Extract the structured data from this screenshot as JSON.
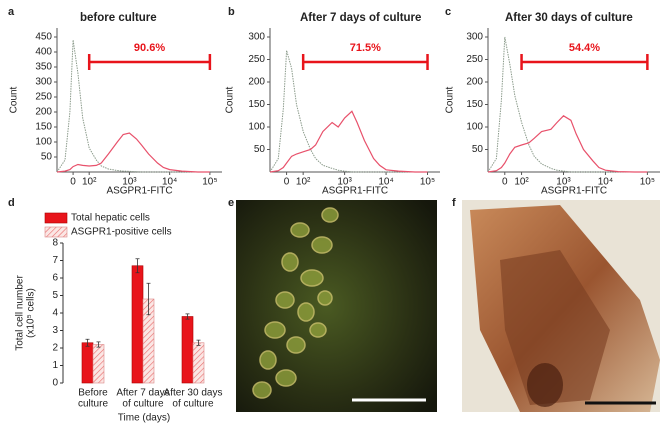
{
  "chart_data": [
    {
      "type": "line",
      "panel": "a",
      "title": "before culture",
      "xlabel": "ASGPR1-FITC",
      "ylabel": "Count",
      "xscale": "biexponential",
      "x": [
        -100,
        -50,
        -20,
        0,
        30,
        60,
        100,
        150,
        200,
        300,
        500,
        700,
        1000,
        1500,
        2000,
        3000,
        5000,
        7000,
        10000,
        20000,
        50000,
        100000
      ],
      "series": [
        {
          "color": "#8a9a8a",
          "style": "dotted",
          "values": [
            0,
            40,
            200,
            440,
            330,
            180,
            80,
            40,
            20,
            10,
            5,
            3,
            2,
            1,
            0,
            0,
            0,
            0,
            0,
            0,
            0,
            0
          ]
        },
        {
          "color": "#e8516b",
          "style": "solid",
          "values": [
            0,
            3,
            8,
            18,
            25,
            22,
            20,
            22,
            30,
            60,
            100,
            125,
            130,
            110,
            90,
            60,
            30,
            15,
            8,
            3,
            0,
            0
          ]
        }
      ],
      "xlim": [
        -100,
        200000
      ],
      "xticks": [
        0,
        {
          "value": 100,
          "label": "10²"
        },
        {
          "value": 1000,
          "label": "10³"
        },
        {
          "value": 10000,
          "label": "10⁴"
        },
        {
          "value": 100000,
          "label": "10⁵"
        }
      ],
      "ylim": [
        0,
        480
      ],
      "yticks": [
        50,
        100,
        150,
        200,
        250,
        300,
        350,
        400,
        450
      ],
      "gate": {
        "label": "90.6%",
        "range": [
          100,
          100000
        ]
      }
    },
    {
      "type": "line",
      "panel": "b",
      "title": "After 7 days of culture",
      "xlabel": "ASGPR1-FITC",
      "ylabel": "Count",
      "xscale": "biexponential",
      "x": [
        -100,
        -50,
        -20,
        0,
        30,
        60,
        100,
        150,
        200,
        300,
        500,
        700,
        1000,
        1500,
        2000,
        3000,
        5000,
        7000,
        10000,
        20000,
        50000,
        100000
      ],
      "series": [
        {
          "color": "#8a9a8a",
          "style": "dotted",
          "values": [
            0,
            30,
            140,
            270,
            230,
            150,
            90,
            50,
            30,
            15,
            8,
            4,
            2,
            0,
            0,
            0,
            0,
            0,
            0,
            0,
            0,
            0
          ]
        },
        {
          "color": "#e8516b",
          "style": "solid",
          "values": [
            0,
            3,
            10,
            20,
            35,
            40,
            45,
            50,
            60,
            90,
            110,
            100,
            120,
            135,
            110,
            70,
            30,
            15,
            5,
            2,
            0,
            0
          ]
        }
      ],
      "xlim": [
        -100,
        200000
      ],
      "xticks": [
        0,
        {
          "value": 100,
          "label": "10²"
        },
        {
          "value": 1000,
          "label": "10³"
        },
        {
          "value": 10000,
          "label": "10⁴"
        },
        {
          "value": 100000,
          "label": "10⁵"
        }
      ],
      "ylim": [
        0,
        320
      ],
      "yticks": [
        50,
        100,
        150,
        200,
        250,
        300
      ],
      "gate": {
        "label": "71.5%",
        "range": [
          100,
          100000
        ]
      }
    },
    {
      "type": "line",
      "panel": "c",
      "title": "After 30 days of culture",
      "xlabel": "ASGPR1-FITC",
      "ylabel": "Count",
      "xscale": "biexponential",
      "x": [
        -100,
        -50,
        -20,
        0,
        30,
        60,
        100,
        150,
        200,
        300,
        500,
        700,
        1000,
        1500,
        2000,
        3000,
        5000,
        7000,
        10000,
        20000,
        50000,
        100000
      ],
      "series": [
        {
          "color": "#8a9a8a",
          "style": "dotted",
          "values": [
            0,
            30,
            160,
            300,
            240,
            170,
            110,
            60,
            35,
            18,
            8,
            4,
            2,
            0,
            0,
            0,
            0,
            0,
            0,
            0,
            0,
            0
          ]
        },
        {
          "color": "#e8516b",
          "style": "solid",
          "values": [
            0,
            3,
            10,
            20,
            40,
            55,
            60,
            65,
            75,
            90,
            95,
            110,
            125,
            115,
            85,
            50,
            25,
            10,
            4,
            1,
            0,
            0
          ]
        }
      ],
      "xlim": [
        -100,
        200000
      ],
      "xticks": [
        0,
        {
          "value": 100,
          "label": "10²"
        },
        {
          "value": 1000,
          "label": "10³"
        },
        {
          "value": 10000,
          "label": "10⁴"
        },
        {
          "value": 100000,
          "label": "10⁵"
        }
      ],
      "ylim": [
        0,
        320
      ],
      "yticks": [
        50,
        100,
        150,
        200,
        250,
        300
      ],
      "gate": {
        "label": "54.4%",
        "range": [
          100,
          100000
        ]
      }
    },
    {
      "type": "bar",
      "panel": "d",
      "xlabel": "Time (days)",
      "ylabel": [
        "Total cell number",
        "(x10⁵ cells)"
      ],
      "categories": [
        [
          "Before",
          "culture"
        ],
        [
          "After 7 days",
          "of culture"
        ],
        [
          "After 30 days",
          "of culture"
        ]
      ],
      "series": [
        {
          "name": "Total hepatic cells",
          "color": "#e8141b",
          "hatch": false,
          "values": [
            2.3,
            6.7,
            3.8
          ],
          "errors": [
            0.2,
            0.4,
            0.15
          ]
        },
        {
          "name": "ASGPR1-positive cells",
          "color": "#f7d2cf",
          "hatch": true,
          "values": [
            2.2,
            4.8,
            2.3
          ],
          "errors": [
            0.15,
            0.9,
            0.15
          ]
        }
      ],
      "ylim": [
        0,
        8
      ],
      "yticks": [
        0,
        1,
        2,
        3,
        4,
        5,
        6,
        7,
        8
      ],
      "legend": "top-left"
    }
  ],
  "images": [
    {
      "panel": "e"
    },
    {
      "panel": "f"
    }
  ]
}
